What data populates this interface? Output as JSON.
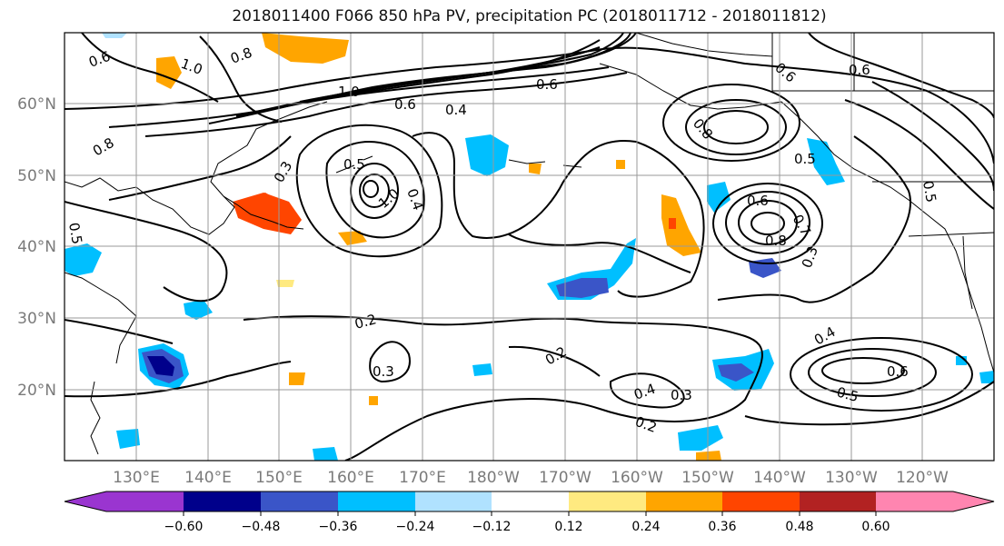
{
  "title": "2018011400 F066 850 hPa PV, precipitation PC (2018011712 - 2018011812)",
  "lat_labels": [
    "60°N",
    "50°N",
    "40°N",
    "30°N",
    "20°N"
  ],
  "lon_labels": [
    "130°E",
    "140°E",
    "150°E",
    "160°E",
    "170°E",
    "180°W",
    "170°W",
    "160°W",
    "150°W",
    "140°W",
    "130°W",
    "120°W"
  ],
  "contour_labels": [
    "0.6",
    "1.0",
    "0.8",
    "0.6",
    "0.4",
    "0.8",
    "1.0",
    "0.6",
    "0.5",
    "0.3",
    "0.5",
    "0.4",
    "1.0",
    "0.6",
    "0.8",
    "0.5",
    "0.6",
    "0.7",
    "0.8",
    "0.3",
    "0.2",
    "0.3",
    "0.2",
    "0.4",
    "0.3",
    "0.2",
    "0.4",
    "0.6",
    "0.5",
    "0.5",
    "0.6"
  ],
  "colorbar": {
    "tick_labels": [
      "−0.60",
      "−0.48",
      "−0.36",
      "−0.24",
      "−0.12",
      "0.12",
      "0.24",
      "0.36",
      "0.48",
      "0.60"
    ],
    "colors": [
      "#9a35d0",
      "#00008b",
      "#3a55c8",
      "#00bfff",
      "#b0e2ff",
      "#ffffff",
      "#ffea80",
      "#ffa500",
      "#ff4500",
      "#b22222",
      "#ff85b0"
    ]
  }
}
